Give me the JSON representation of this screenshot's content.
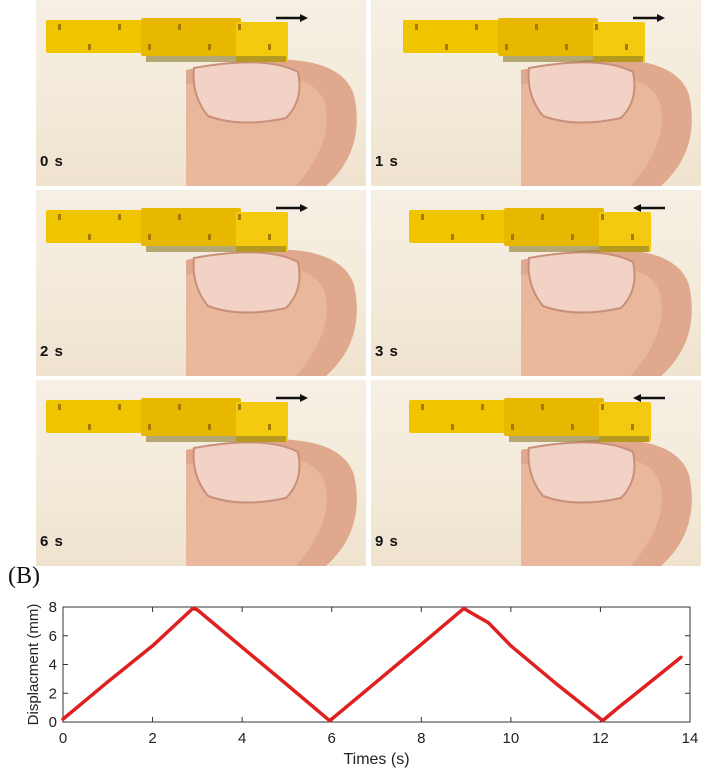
{
  "panel_b": {
    "label": "(B)"
  },
  "frames": [
    {
      "time": "0 s",
      "direction": "right"
    },
    {
      "time": "1 s",
      "direction": "right"
    },
    {
      "time": "2 s",
      "direction": "right"
    },
    {
      "time": "3 s",
      "direction": "left"
    },
    {
      "time": "6 s",
      "direction": "right"
    },
    {
      "time": "9 s",
      "direction": "left"
    }
  ],
  "colors": {
    "line": "#e02020",
    "device": "#f0c400",
    "skin": "#e8b8a0"
  },
  "chart_data": {
    "type": "line",
    "title": "",
    "xlabel": "Times (s)",
    "ylabel": "Displacment (mm)",
    "xlim": [
      0,
      14
    ],
    "ylim": [
      0,
      8
    ],
    "xticks": [
      "0",
      "2",
      "4",
      "6",
      "8",
      "10",
      "12",
      "14"
    ],
    "yticks": [
      "0",
      "2",
      "4",
      "6",
      "8"
    ],
    "grid": false,
    "series": [
      {
        "x": [
          0,
          1,
          2,
          2.9,
          3,
          4,
          5,
          5.95,
          6,
          7,
          8,
          8.95,
          9,
          9.5,
          10,
          11,
          12.05,
          12.4,
          13,
          13.8
        ],
        "y": [
          0.2,
          2.8,
          5.3,
          7.9,
          7.8,
          5.2,
          2.6,
          0.1,
          0.2,
          2.8,
          5.4,
          7.9,
          7.8,
          6.9,
          5.3,
          2.7,
          0.1,
          1.0,
          2.5,
          4.5
        ]
      }
    ]
  }
}
